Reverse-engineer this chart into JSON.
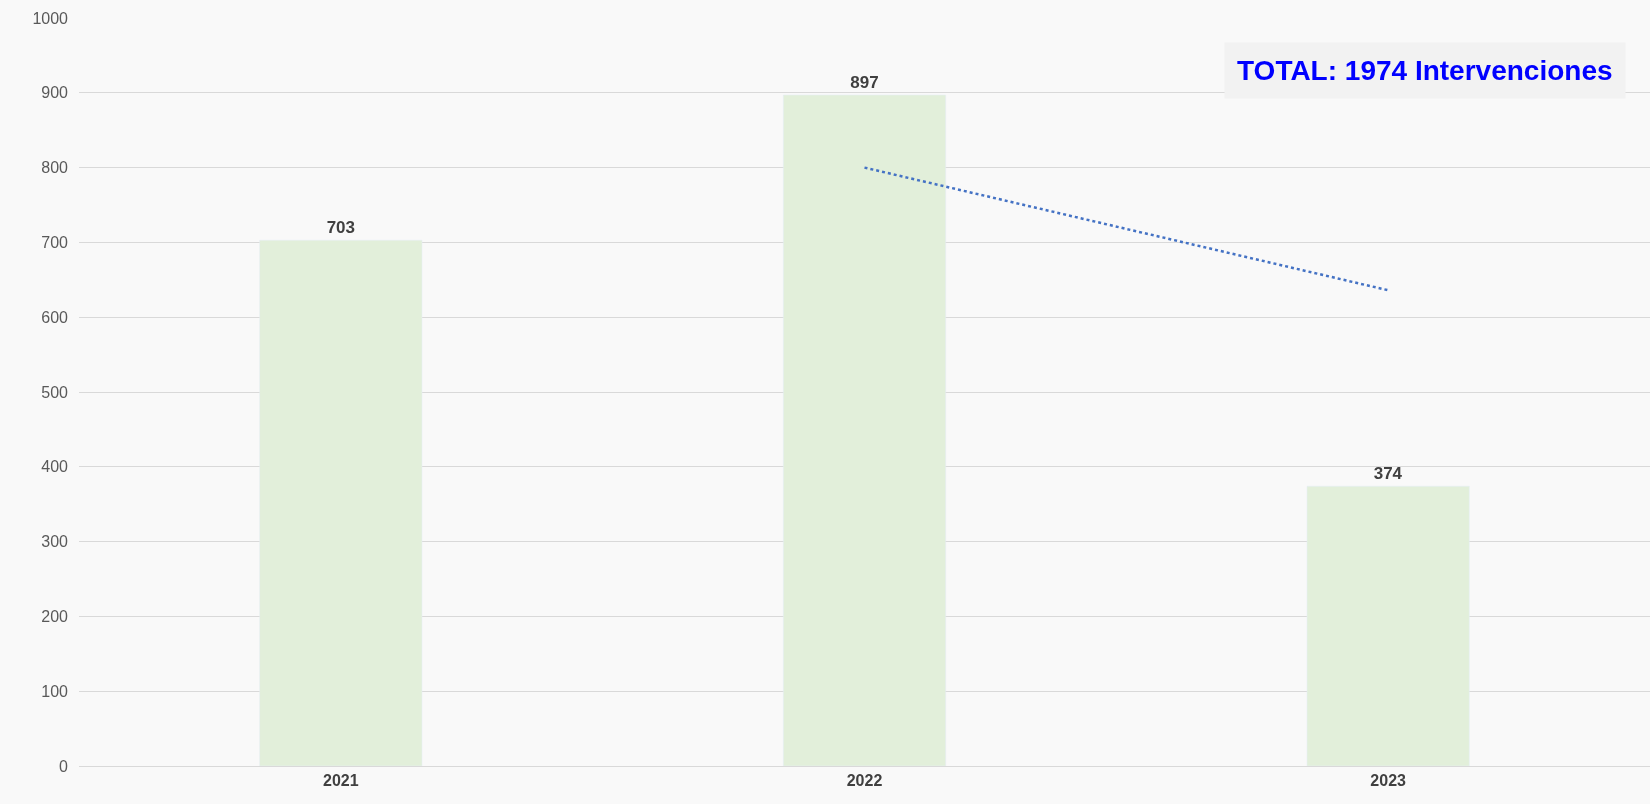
{
  "chart_data": {
    "type": "bar",
    "categories": [
      "2021",
      "2022",
      "2023"
    ],
    "series": [
      {
        "color": "#e2efda",
        "values": [
          703,
          897,
          374
        ],
        "value_labels": [
          "703",
          "897",
          "374"
        ]
      },
      {
        "type": "line",
        "color": "#4472c4",
        "values": [
          null,
          800,
          636
        ],
        "line_style": "dotted",
        "marker": "none"
      }
    ],
    "ylim": [
      0,
      1000
    ],
    "yticks": [
      0,
      100,
      200,
      300,
      400,
      500,
      600,
      700,
      800,
      900,
      1000
    ],
    "grid": "y",
    "annotations": [
      "TOTAL: 1974 Intervenciones"
    ]
  }
}
